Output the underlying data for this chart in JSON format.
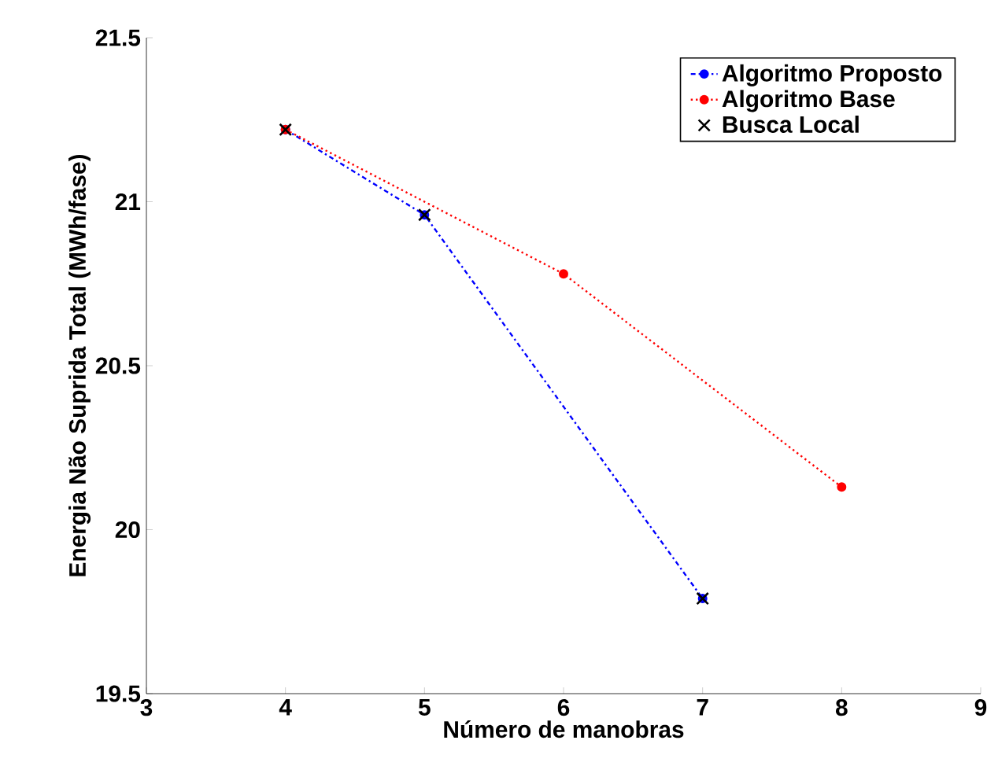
{
  "chart_data": {
    "type": "line",
    "xlabel": "Número de manobras",
    "ylabel": "Energia Não Suprida Total (MWh/fase)",
    "xlim": [
      3,
      9
    ],
    "xticks": [
      3,
      4,
      5,
      6,
      7,
      8,
      9
    ],
    "ylim": [
      19.5,
      21.5
    ],
    "yticks": [
      19.5,
      20,
      20.5,
      21,
      21.5
    ],
    "legend": "top right",
    "grid": false,
    "series": [
      {
        "name": "Algoritmo Proposto",
        "color": "#0000ff",
        "x": [
          4,
          5,
          7
        ],
        "values": [
          21.22,
          20.96,
          19.79
        ],
        "line_style": "dashdot",
        "marker": "circle"
      },
      {
        "name": "Algoritmo Base",
        "color": "#ff0000",
        "x": [
          4,
          6,
          8
        ],
        "values": [
          21.22,
          20.78,
          20.13
        ],
        "line_style": "dotted",
        "marker": "circle"
      },
      {
        "name": "Busca Local",
        "color": "#000000",
        "type": "scatter",
        "x": [
          4,
          5,
          7
        ],
        "values": [
          21.22,
          20.96,
          19.79
        ],
        "marker": "cross"
      }
    ]
  }
}
